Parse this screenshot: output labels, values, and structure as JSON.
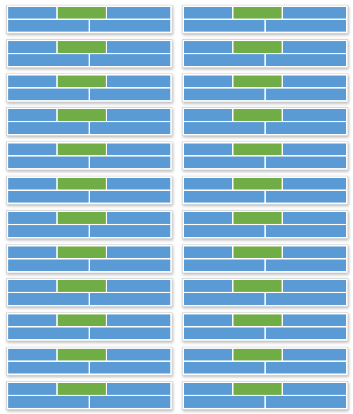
{
  "colors": {
    "segment_fill": "#5b9bd5",
    "highlight_fill": "#70ad47",
    "divider": "#ffffff",
    "card_border": "#d6d6d6",
    "background": "#ffffff"
  },
  "layout": {
    "columns": 2,
    "rows": 12
  },
  "cards": [
    {
      "id": "r1-left",
      "highlight_segment": "top-middle"
    },
    {
      "id": "r1-right",
      "highlight_segment": "top-middle"
    },
    {
      "id": "r2-left",
      "highlight_segment": "top-middle"
    },
    {
      "id": "r2-right",
      "highlight_segment": "top-middle"
    },
    {
      "id": "r3-left",
      "highlight_segment": "top-middle"
    },
    {
      "id": "r3-right",
      "highlight_segment": "top-middle"
    },
    {
      "id": "r4-left",
      "highlight_segment": "top-middle"
    },
    {
      "id": "r4-right",
      "highlight_segment": "top-middle"
    },
    {
      "id": "r5-left",
      "highlight_segment": "top-middle"
    },
    {
      "id": "r5-right",
      "highlight_segment": "top-middle"
    },
    {
      "id": "r6-left",
      "highlight_segment": "top-middle"
    },
    {
      "id": "r6-right",
      "highlight_segment": "top-middle"
    },
    {
      "id": "r7-left",
      "highlight_segment": "top-middle"
    },
    {
      "id": "r7-right",
      "highlight_segment": "top-middle"
    },
    {
      "id": "r8-left",
      "highlight_segment": "top-middle"
    },
    {
      "id": "r8-right",
      "highlight_segment": "top-middle"
    },
    {
      "id": "r9-left",
      "highlight_segment": "top-middle"
    },
    {
      "id": "r9-right",
      "highlight_segment": "top-middle"
    },
    {
      "id": "r10-left",
      "highlight_segment": "top-middle"
    },
    {
      "id": "r10-right",
      "highlight_segment": "top-middle"
    },
    {
      "id": "r11-left",
      "highlight_segment": "top-middle"
    },
    {
      "id": "r11-right",
      "highlight_segment": "top-middle"
    },
    {
      "id": "r12-left",
      "highlight_segment": "top-middle"
    },
    {
      "id": "r12-right",
      "highlight_segment": "top-middle"
    }
  ]
}
